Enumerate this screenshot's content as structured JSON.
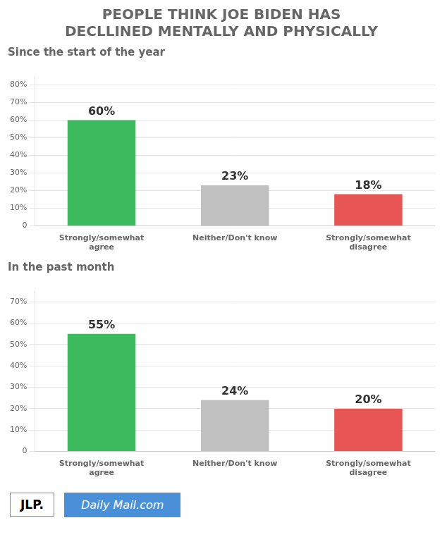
{
  "chart_data": [
    {
      "type": "bar",
      "title": [
        "PEOPLE THINK JOE BIDEN HAS",
        "DECLLINED MENTALLY AND PHYSICALLY"
      ],
      "subtitle": "Since the start of the year",
      "categories": [
        "Strongly/somewhat\nagree",
        "Neither/Don't know",
        "Strongly/somewhat\ndisagree"
      ],
      "values": [
        60,
        23,
        18
      ],
      "value_labels": [
        "60%",
        "23%",
        "18%"
      ],
      "colors": [
        "#3dba5e",
        "#c0c0c0",
        "#e85555"
      ],
      "ylim": [
        0,
        85
      ],
      "yticks": [
        0,
        {
          "value": 10,
          "label": "10%"
        },
        {
          "value": 20,
          "label": "20%"
        },
        {
          "value": 30,
          "label": "30%"
        },
        {
          "value": 40,
          "label": "40%"
        },
        {
          "value": 50,
          "label": "50%"
        },
        {
          "value": 60,
          "label": "60%"
        },
        {
          "value": 70,
          "label": "70%"
        },
        {
          "value": 80,
          "label": "80%"
        }
      ],
      "grid": true,
      "data_labels": true
    },
    {
      "type": "bar",
      "subtitle": "In the past month",
      "categories": [
        "Strongly/somewhat\nagree",
        "Neither/Don't know",
        "Strongly/somewhat\ndisagree"
      ],
      "values": [
        55,
        24,
        20
      ],
      "value_labels": [
        "55%",
        "24%",
        "20%"
      ],
      "colors": [
        "#3dba5e",
        "#c0c0c0",
        "#e85555"
      ],
      "ylim": [
        0,
        75
      ],
      "yticks": [
        0,
        {
          "value": 10,
          "label": "10%"
        },
        {
          "value": 20,
          "label": "20%"
        },
        {
          "value": 30,
          "label": "30%"
        },
        {
          "value": 40,
          "label": "40%"
        },
        {
          "value": 50,
          "label": "50%"
        },
        {
          "value": 60,
          "label": "60%"
        },
        {
          "value": 70,
          "label": "70%"
        }
      ],
      "grid": true,
      "data_labels": true,
      "annotations": [
        "JLP.",
        "Daily Mail.com"
      ]
    }
  ]
}
